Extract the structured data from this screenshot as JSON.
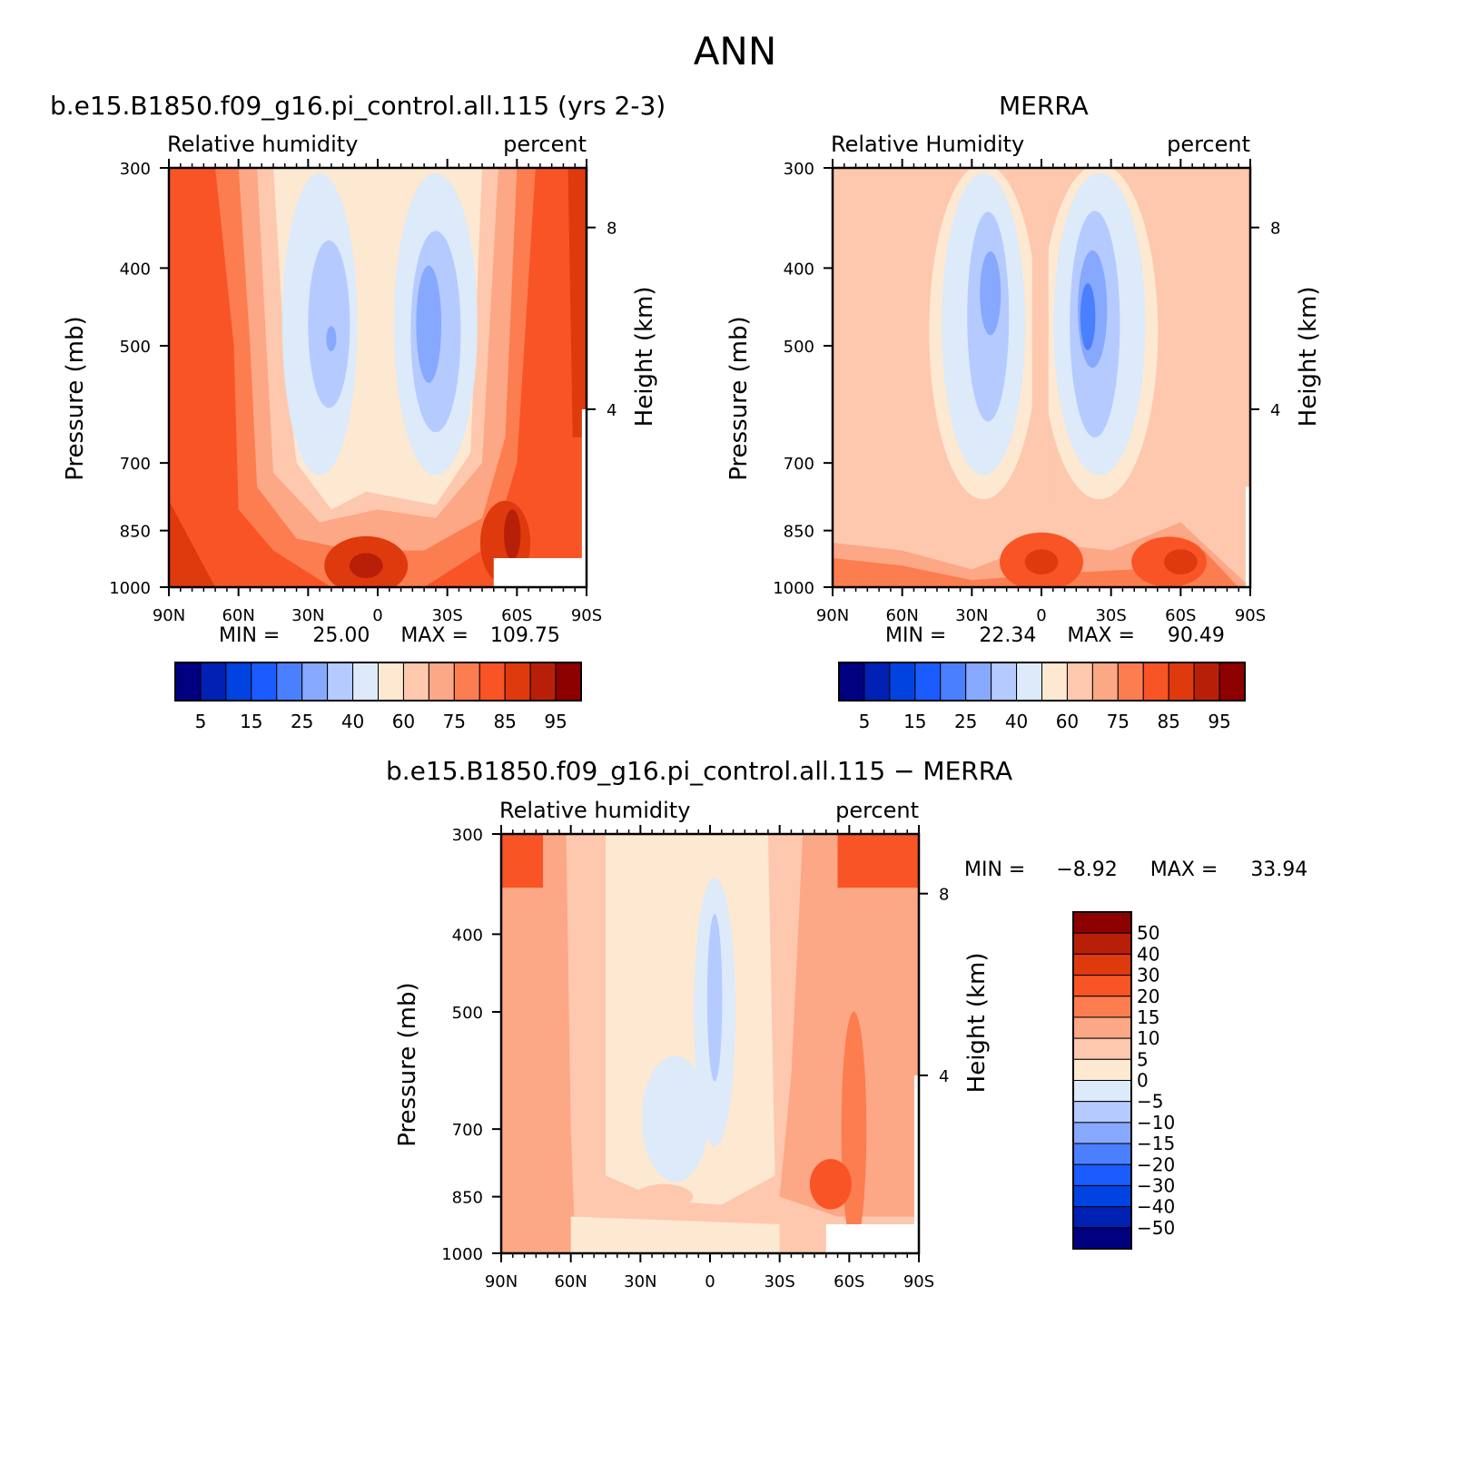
{
  "main_title": "ANN",
  "panels": {
    "model": {
      "title": "b.e15.B1850.f09_g16.pi_control.all.115 (yrs 2-3)",
      "left_label": "Relative humidity",
      "right_label": "percent",
      "min_label": "MIN =",
      "min_value": "25.00",
      "max_label": "MAX =",
      "max_value": "109.75"
    },
    "obs": {
      "title": "MERRA",
      "left_label": "Relative Humidity",
      "right_label": "percent",
      "min_label": "MIN =",
      "min_value": "22.34",
      "max_label": "MAX =",
      "max_value": "90.49"
    },
    "diff": {
      "title": "b.e15.B1850.f09_g16.pi_control.all.115 − MERRA",
      "left_label": "Relative humidity",
      "right_label": "percent",
      "min_label": "MIN =",
      "min_value": "−8.92",
      "max_label": "MAX =",
      "max_value": "33.94"
    }
  },
  "chart_data": [
    {
      "type": "heatmap",
      "name": "model",
      "title": "b.e15.B1850.f09_g16.pi_control.all.115 (yrs 2-3)",
      "xlabel": "",
      "ylabel": "Pressure (mb)",
      "y2label": "Height (km)",
      "x_ticks": [
        "90N",
        "60N",
        "30N",
        "0",
        "30S",
        "60S",
        "90S"
      ],
      "x_values": [
        90,
        60,
        30,
        0,
        -30,
        -60,
        -90
      ],
      "y_ticks": [
        300,
        400,
        500,
        700,
        850,
        1000
      ],
      "y2_ticks": [
        8,
        4
      ],
      "y_scale": "log",
      "colorbar_ticks": [
        "5",
        "15",
        "25",
        "40",
        "60",
        "75",
        "85",
        "95"
      ]
    },
    {
      "type": "heatmap",
      "name": "obs",
      "title": "MERRA",
      "xlabel": "",
      "ylabel": "Pressure (mb)",
      "y2label": "Height (km)",
      "x_ticks": [
        "90N",
        "60N",
        "30N",
        "0",
        "30S",
        "60S",
        "90S"
      ],
      "x_values": [
        90,
        60,
        30,
        0,
        -30,
        -60,
        -90
      ],
      "y_ticks": [
        300,
        400,
        500,
        700,
        850,
        1000
      ],
      "y2_ticks": [
        8,
        4
      ],
      "y_scale": "log",
      "colorbar_ticks": [
        "5",
        "15",
        "25",
        "40",
        "60",
        "75",
        "85",
        "95"
      ]
    },
    {
      "type": "heatmap",
      "name": "diff",
      "title": "b.e15.B1850.f09_g16.pi_control.all.115 − MERRA",
      "xlabel": "",
      "ylabel": "Pressure (mb)",
      "y2label": "Height (km)",
      "x_ticks": [
        "90N",
        "60N",
        "30N",
        "0",
        "30S",
        "60S",
        "90S"
      ],
      "x_values": [
        90,
        60,
        30,
        0,
        -30,
        -60,
        -90
      ],
      "y_ticks": [
        300,
        400,
        500,
        700,
        850,
        1000
      ],
      "y2_ticks": [
        8,
        4
      ],
      "y_scale": "log",
      "colorbar_ticks": [
        "50",
        "40",
        "30",
        "20",
        "15",
        "10",
        "5",
        "0",
        "−5",
        "−10",
        "−15",
        "−20",
        "−30",
        "−40",
        "−50"
      ]
    }
  ],
  "colors": {
    "scale": [
      "#000080",
      "#0021b3",
      "#0043e0",
      "#1a5cff",
      "#4a7fff",
      "#87a8ff",
      "#b5cbff",
      "#dceaf9",
      "#fde8d2",
      "#fdc8ad",
      "#fca785",
      "#fc7d50",
      "#f95426",
      "#df3a0e",
      "#b81f08",
      "#8c0000"
    ]
  }
}
